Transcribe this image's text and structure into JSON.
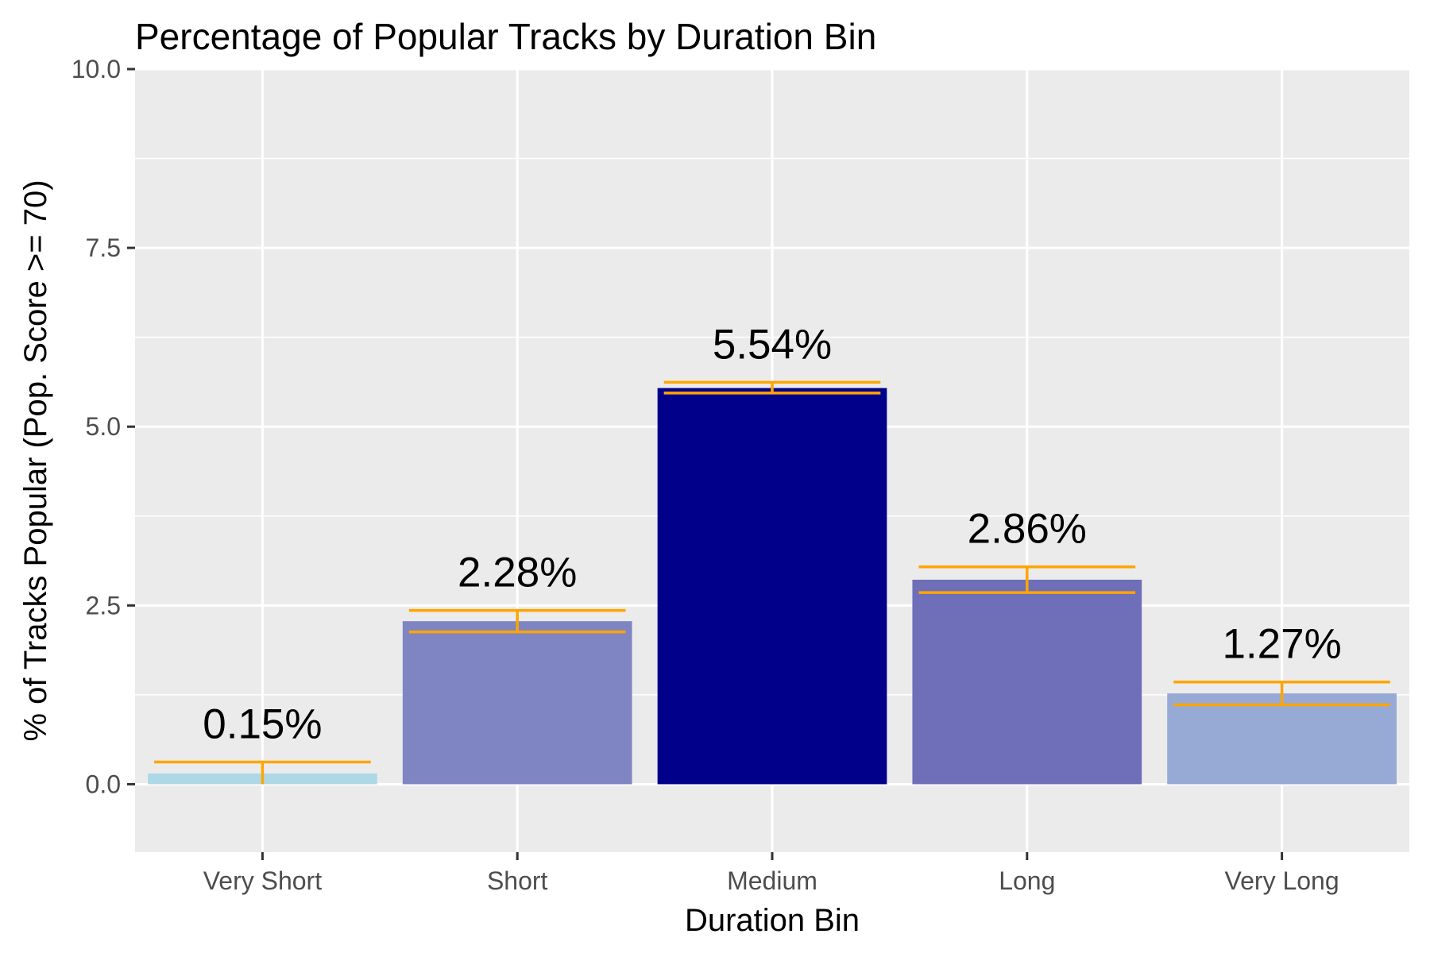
{
  "chart_data": {
    "type": "bar",
    "title": "Percentage of Popular Tracks by Duration Bin",
    "xlabel": "Duration Bin",
    "ylabel": "% of Tracks Popular (Pop. Score >= 70)",
    "categories": [
      "Very Short",
      "Short",
      "Medium",
      "Long",
      "Very Long"
    ],
    "values": [
      0.15,
      2.28,
      5.54,
      2.86,
      1.27
    ],
    "value_labels": [
      "0.15%",
      "2.28%",
      "5.54%",
      "2.86%",
      "1.27%"
    ],
    "error_bars": [
      {
        "low": 0.0,
        "high": 0.31
      },
      {
        "low": 2.13,
        "high": 2.43
      },
      {
        "low": 5.47,
        "high": 5.62
      },
      {
        "low": 2.68,
        "high": 3.04
      },
      {
        "low": 1.11,
        "high": 1.43
      }
    ],
    "bar_colors": [
      "#ADD8E6",
      "#7F84C3",
      "#00008B",
      "#6F6EB9",
      "#97AAD5"
    ],
    "error_bar_color": "#FFA500",
    "ylim": [
      -0.95,
      10.0
    ],
    "yticks": [
      0.0,
      2.5,
      5.0,
      7.5,
      10.0
    ],
    "ytick_labels": [
      "0.0",
      "2.5",
      "5.0",
      "7.5",
      "10.0"
    ],
    "grid": true,
    "legend": "none",
    "panel_background": "#EBEBEB",
    "grid_color": "#FFFFFF"
  }
}
